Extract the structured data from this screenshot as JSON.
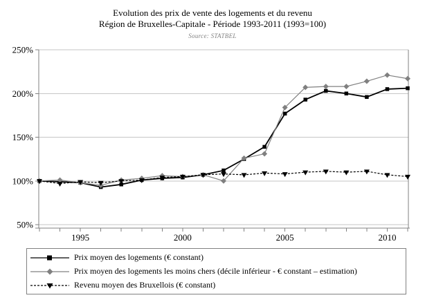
{
  "title": {
    "line1": "Evolution des prix de vente des logements et du revenu",
    "line2": "Région de Bruxelles-Capitale - Période 1993-2011 (1993=100)",
    "source": "Source: STATBEL"
  },
  "colors": {
    "series_main": "#000000",
    "series_cheap": "#808080",
    "series_income": "#000000",
    "gridline": "#c6c6c6",
    "axis": "#808080",
    "text": "#000000",
    "source_text": "#808080",
    "legend_border": "#808080",
    "background": "#ffffff"
  },
  "chart_data": {
    "type": "line",
    "title": "Evolution des prix de vente des logements et du revenu — Région de Bruxelles-Capitale - Période 1993-2011 (1993=100)",
    "xlabel": "",
    "ylabel": "",
    "grid": "horizontal",
    "legend_position": "bottom",
    "ylim": [
      50,
      250
    ],
    "x": [
      1993,
      1994,
      1995,
      1996,
      1997,
      1998,
      1999,
      2000,
      2001,
      2002,
      2003,
      2004,
      2005,
      2006,
      2007,
      2008,
      2009,
      2010,
      2011
    ],
    "yticks": [
      {
        "value": 50,
        "label": "50%"
      },
      {
        "value": 100,
        "label": "100%"
      },
      {
        "value": 150,
        "label": "150%"
      },
      {
        "value": 200,
        "label": "200%"
      },
      {
        "value": 250,
        "label": "250%"
      }
    ],
    "xtick_labels": [
      {
        "year": 1995,
        "label": "1995"
      },
      {
        "year": 2000,
        "label": "2000"
      },
      {
        "year": 2005,
        "label": "2005"
      },
      {
        "year": 2010,
        "label": "2010"
      }
    ],
    "series": [
      {
        "name": "Prix moyen des logements (€ constant)",
        "marker": "square",
        "line": "solid",
        "color": "#000000",
        "values": [
          100,
          99,
          98,
          93,
          96,
          101,
          103,
          104,
          107,
          112,
          125,
          139,
          177,
          193,
          203,
          200,
          196,
          205,
          206
        ]
      },
      {
        "name": "Prix moyen des logements les moins chers (décile inférieur - € constant – estimation)",
        "marker": "diamond",
        "line": "solid",
        "color": "#808080",
        "values": [
          100,
          101,
          98,
          95,
          101,
          103,
          106,
          105,
          107,
          100,
          126,
          131,
          184,
          207,
          208,
          208,
          214,
          221,
          217
        ]
      },
      {
        "name": "Revenu moyen des Bruxellois (€ constant)",
        "marker": "triangle-down",
        "line": "dashed",
        "color": "#000000",
        "values": [
          100,
          97,
          99,
          98,
          100,
          101,
          104,
          105,
          107,
          108,
          107,
          109,
          108,
          110,
          111,
          110,
          111,
          107,
          105
        ]
      }
    ]
  }
}
